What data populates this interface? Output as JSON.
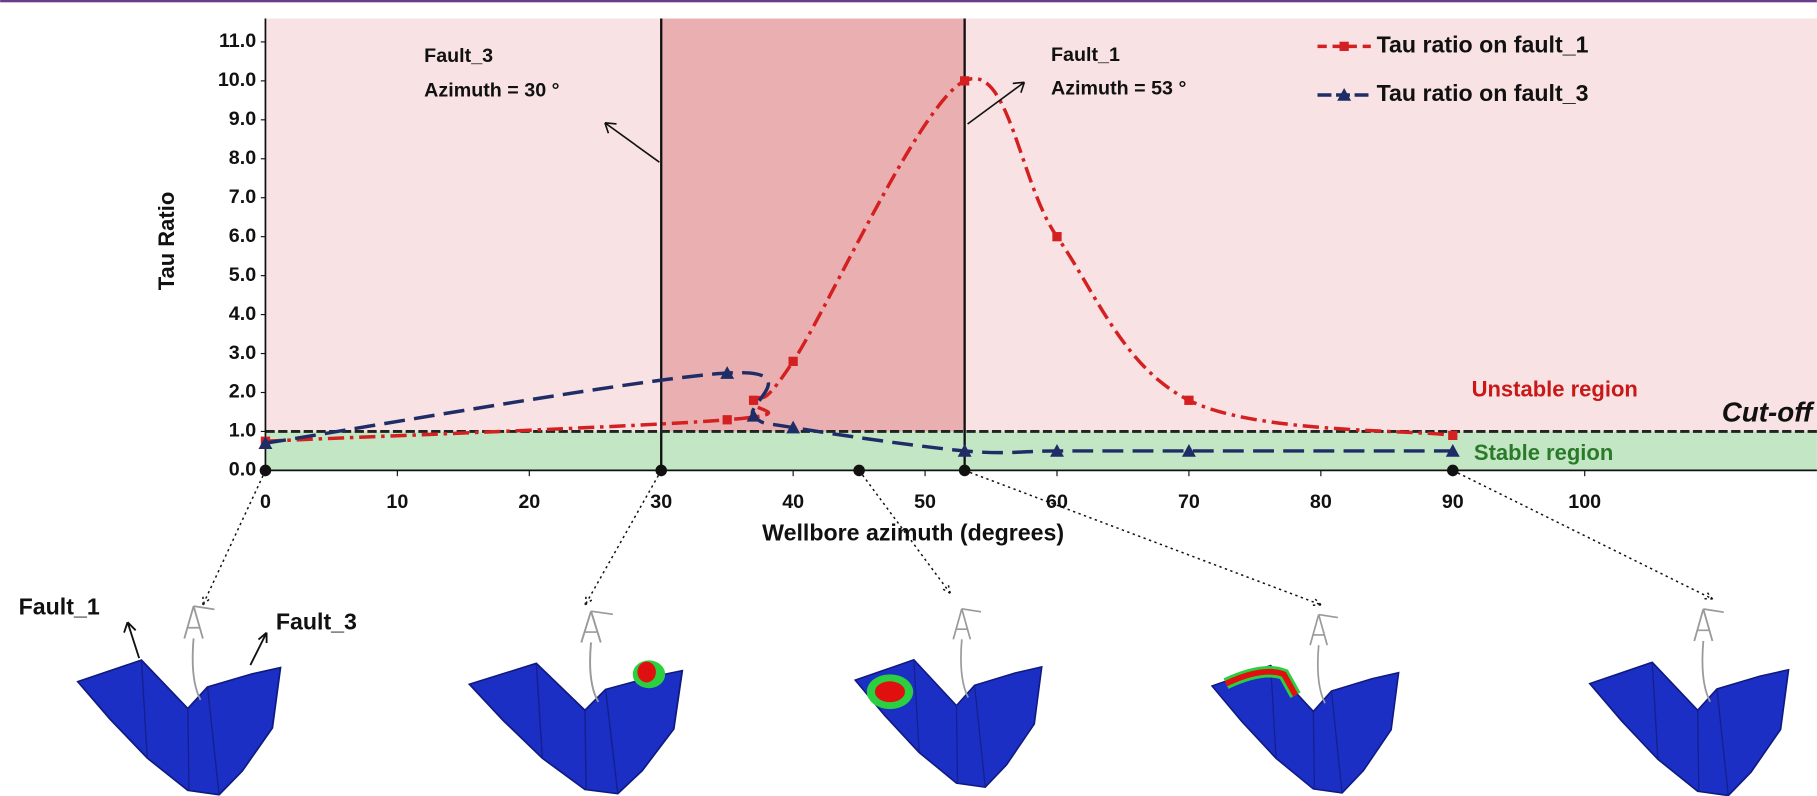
{
  "chart_data": {
    "type": "line",
    "xlabel": "Wellbore azimuth (degrees)",
    "ylabel": "Tau Ratio",
    "x": [
      0,
      35,
      37,
      40,
      53,
      60,
      70,
      90
    ],
    "series": [
      {
        "name": "Tau ratio on fault_1",
        "color": "#d42020",
        "dash": "14 5 3 5",
        "marker": "square",
        "values": [
          0.75,
          1.3,
          1.8,
          2.8,
          10.0,
          6.0,
          1.8,
          0.9
        ]
      },
      {
        "name": "Tau ratio on fault_3",
        "color": "#1f2d66",
        "dash": "18 8",
        "marker": "triangle",
        "values": [
          0.7,
          2.5,
          1.4,
          1.1,
          0.5,
          0.5,
          0.5,
          0.5
        ]
      }
    ],
    "xlim": [
      0,
      117.6
    ],
    "xticks": [
      0,
      10,
      20,
      30,
      40,
      50,
      60,
      70,
      80,
      90,
      100
    ],
    "ylim": [
      0,
      11.6
    ],
    "yticks": [
      {
        "value": 0,
        "label": "0.0"
      },
      {
        "value": 1,
        "label": "1.0"
      },
      {
        "value": 2,
        "label": "2.0"
      },
      {
        "value": 3,
        "label": "3.0"
      },
      {
        "value": 4,
        "label": "4.0"
      },
      {
        "value": 5,
        "label": "5.0"
      },
      {
        "value": 6,
        "label": "6.0"
      },
      {
        "value": 7,
        "label": "7.0"
      },
      {
        "value": 8,
        "label": "8.0"
      },
      {
        "value": 9,
        "label": "9.0"
      },
      {
        "value": 10,
        "label": "10.0"
      },
      {
        "value": 11,
        "label": "11.0"
      }
    ],
    "cutoff": 1,
    "cutoff_label": "Cut-off",
    "unstable_label": "Unstable region",
    "stable_label": "Stable region",
    "highlight": [
      30,
      53
    ],
    "snapshots": [
      0,
      30,
      45,
      53,
      90
    ],
    "annotations": [
      [
        "Fault_3",
        "Azimuth = 30 °"
      ],
      [
        "Fault_1",
        "Azimuth = 53 °"
      ]
    ],
    "render_labels": [
      "Fault_1",
      "Fault_3"
    ]
  }
}
